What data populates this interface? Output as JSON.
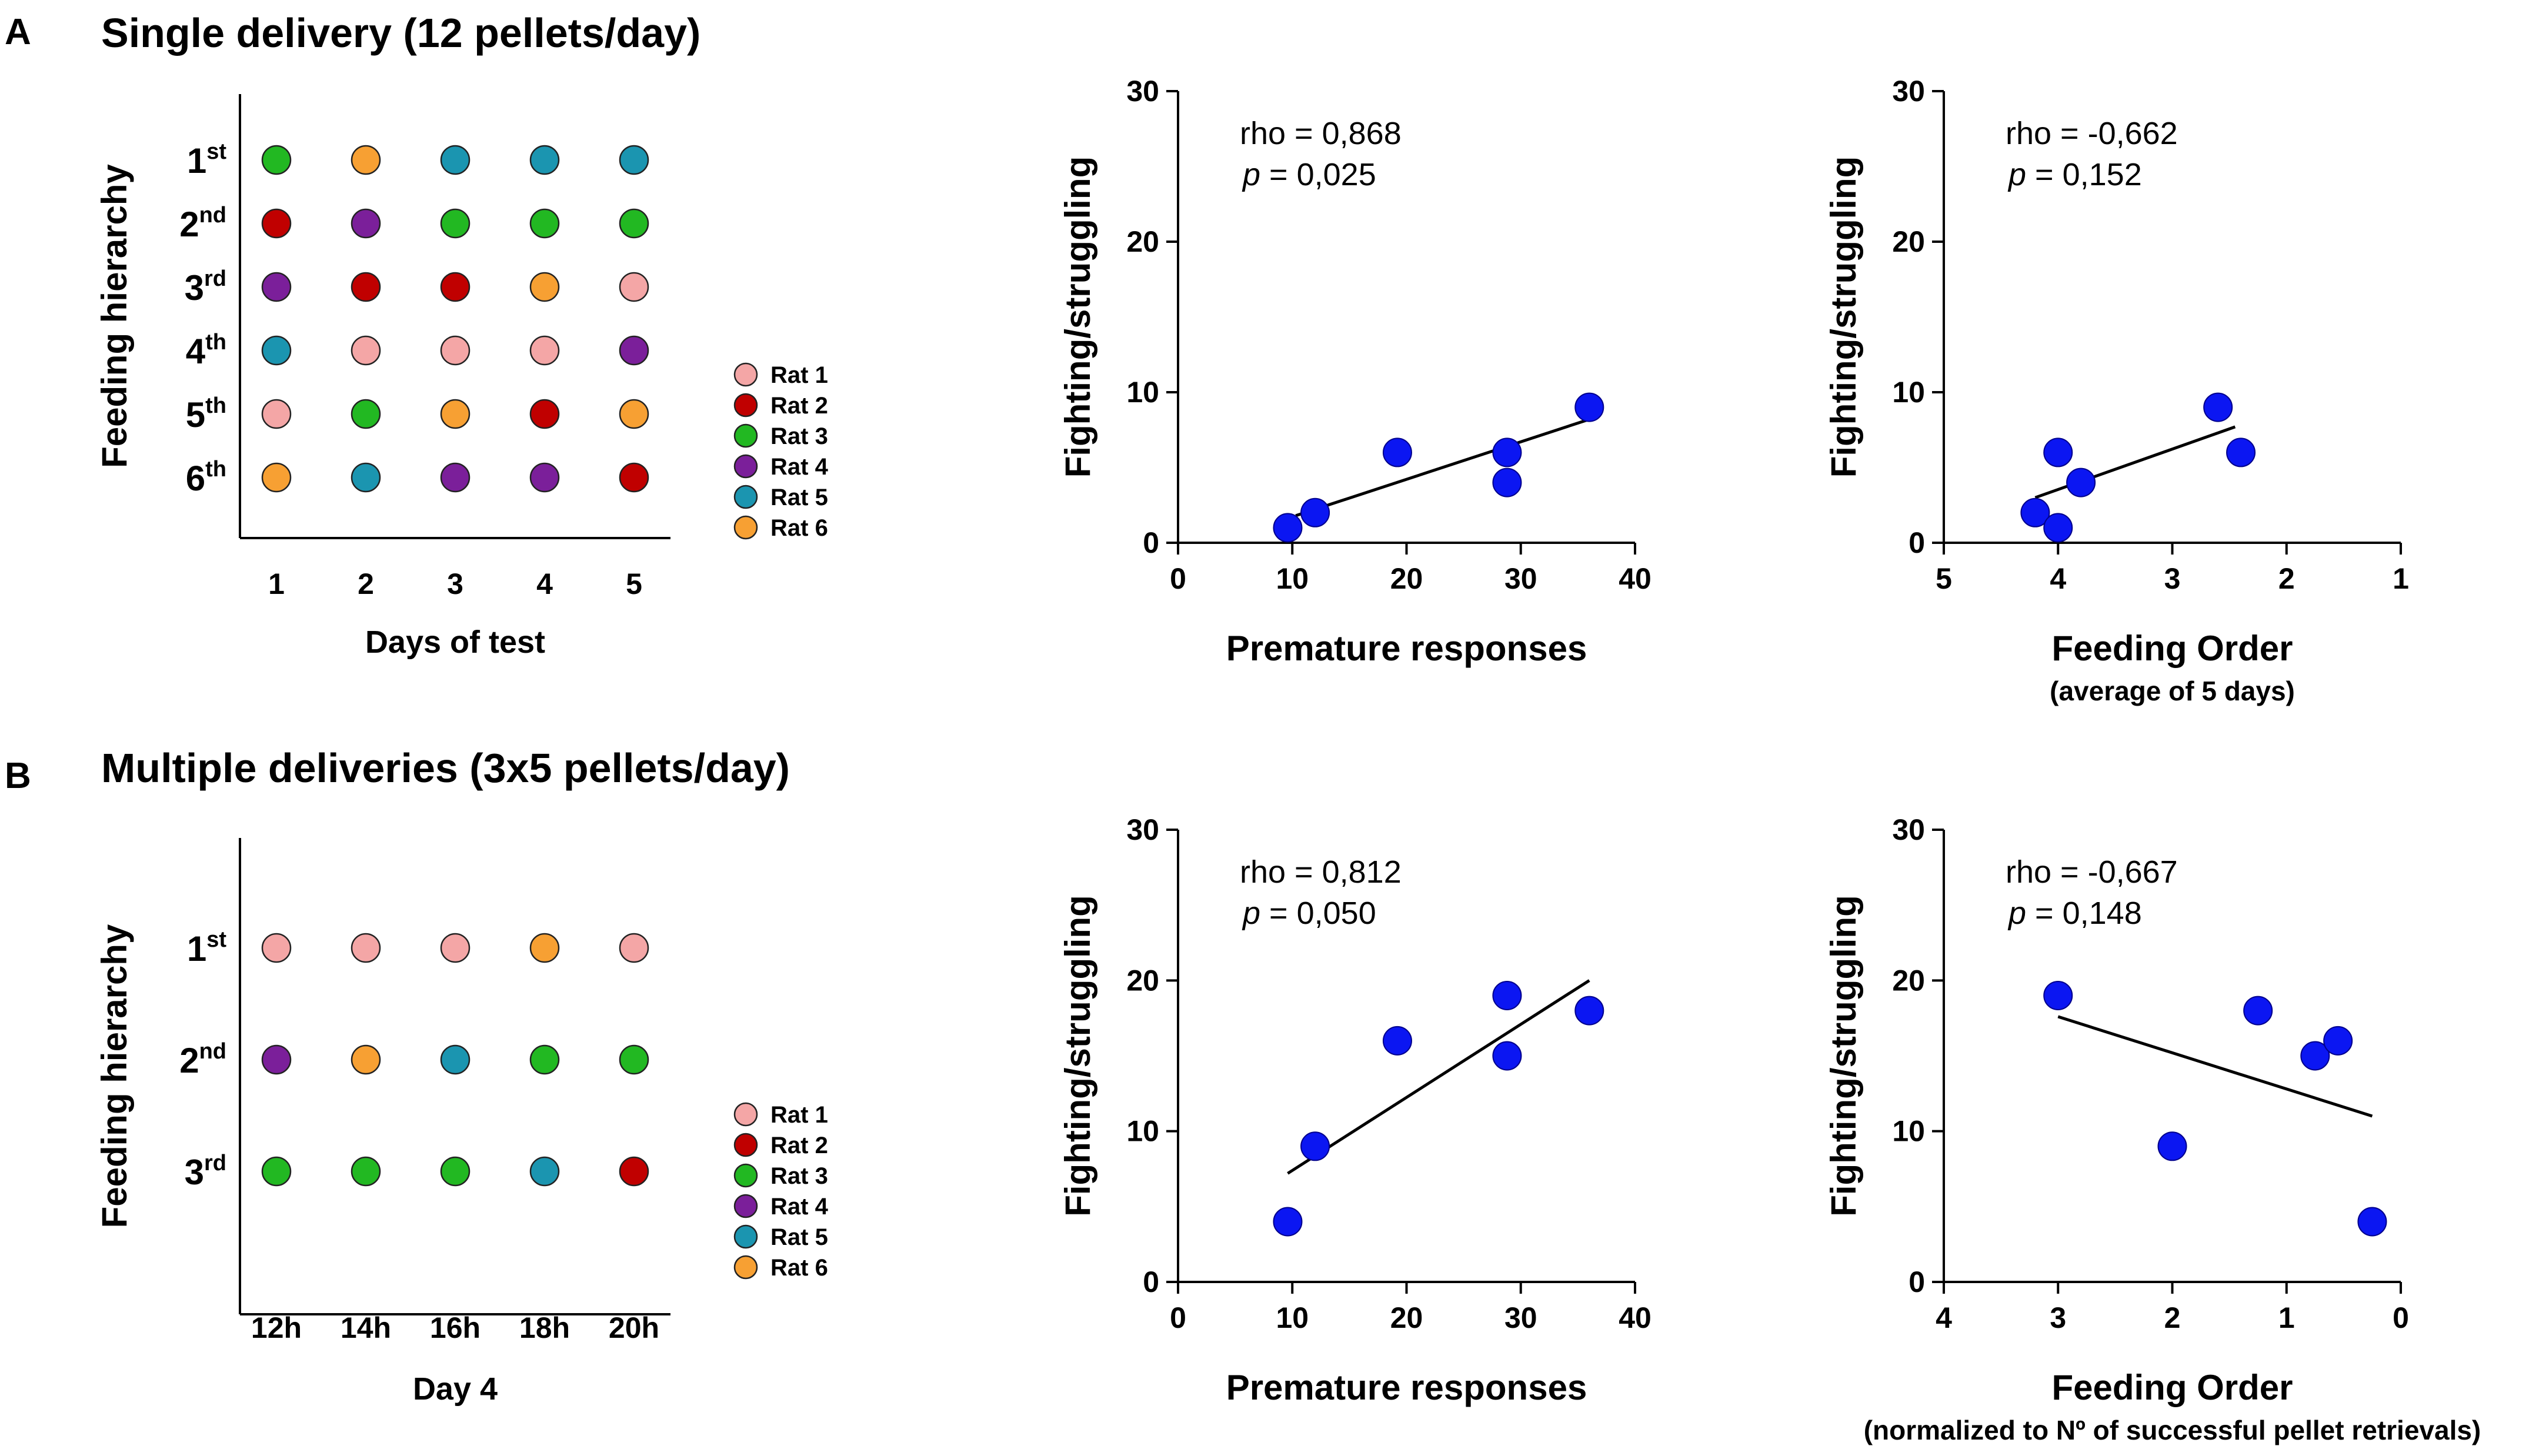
{
  "panels": {
    "A": {
      "letter": "A",
      "title": "Single delivery (12 pellets/day)"
    },
    "B": {
      "letter": "B",
      "title": "Multiple deliveries (3x5 pellets/day)"
    }
  },
  "rat_legend": {
    "entries": [
      {
        "label": "Rat 1",
        "color": "#f4a6a6"
      },
      {
        "label": "Rat 2",
        "color": "#c00000"
      },
      {
        "label": "Rat 3",
        "color": "#22b822"
      },
      {
        "label": "Rat 4",
        "color": "#7b1f9a"
      },
      {
        "label": "Rat 5",
        "color": "#1b95b0"
      },
      {
        "label": "Rat 6",
        "color": "#f7a033"
      }
    ]
  },
  "chart_data": [
    {
      "id": "A-hierarchy",
      "type": "dot-matrix",
      "ylabel": "Feeding hierarchy",
      "xlabel": "Days of test",
      "xlabel_sub": "",
      "categories": [
        "1",
        "2",
        "3",
        "4",
        "5"
      ],
      "ranks": [
        {
          "base": "1",
          "sup": "st"
        },
        {
          "base": "2",
          "sup": "nd"
        },
        {
          "base": "3",
          "sup": "rd"
        },
        {
          "base": "4",
          "sup": "th"
        },
        {
          "base": "5",
          "sup": "th"
        },
        {
          "base": "6",
          "sup": "th"
        }
      ],
      "matrix": [
        [
          3,
          6,
          5,
          5,
          5
        ],
        [
          2,
          4,
          3,
          3,
          3
        ],
        [
          4,
          2,
          2,
          6,
          1
        ],
        [
          5,
          1,
          1,
          1,
          4
        ],
        [
          1,
          3,
          6,
          2,
          6
        ],
        [
          6,
          5,
          4,
          4,
          2
        ]
      ]
    },
    {
      "id": "A-premature",
      "type": "scatter",
      "xlabel": "Premature responses",
      "xlabel_sub": "",
      "ylabel": "Fighting/struggling",
      "xlim": [
        0,
        40
      ],
      "ylim": [
        0,
        30
      ],
      "xticks": [
        "0",
        "10",
        "20",
        "30",
        "40"
      ],
      "yticks": [
        "0",
        "10",
        "20",
        "30"
      ],
      "x_reversed": false,
      "points": [
        {
          "x": 9.6,
          "y": 1
        },
        {
          "x": 12,
          "y": 2
        },
        {
          "x": 19.2,
          "y": 6
        },
        {
          "x": 28.8,
          "y": 6
        },
        {
          "x": 28.8,
          "y": 4
        },
        {
          "x": 36,
          "y": 9
        }
      ],
      "fit_line": {
        "x1": 10.3,
        "y1": 1.8,
        "x2": 36,
        "y2": 8.2
      },
      "annotation": {
        "rho": "rho = 0,868",
        "p_label": "p",
        "p_rest": " = 0,025"
      }
    },
    {
      "id": "A-feeding",
      "type": "scatter",
      "xlabel": "Feeding Order",
      "xlabel_sub": "(average of 5 days)",
      "ylabel": "Fighting/struggling",
      "xlim": [
        5,
        1
      ],
      "ylim": [
        0,
        30
      ],
      "xticks": [
        "5",
        "4",
        "3",
        "2",
        "1"
      ],
      "yticks": [
        "0",
        "10",
        "20",
        "30"
      ],
      "x_reversed": true,
      "points": [
        {
          "x": 4.2,
          "y": 2
        },
        {
          "x": 4.0,
          "y": 1
        },
        {
          "x": 4.0,
          "y": 6
        },
        {
          "x": 3.8,
          "y": 4
        },
        {
          "x": 2.6,
          "y": 9
        },
        {
          "x": 2.4,
          "y": 6
        }
      ],
      "fit_line": {
        "x1": 4.2,
        "y1": 3.0,
        "x2": 2.45,
        "y2": 7.7
      },
      "annotation": {
        "rho": "rho = -0,662",
        "p_label": "p",
        "p_rest": " = 0,152"
      }
    },
    {
      "id": "B-hierarchy",
      "type": "dot-matrix",
      "ylabel": "Feeding hierarchy",
      "xlabel": "Day 4",
      "xlabel_sub": "",
      "categories": [
        "12h",
        "14h",
        "16h",
        "18h",
        "20h"
      ],
      "ranks": [
        {
          "base": "1",
          "sup": "st"
        },
        {
          "base": "2",
          "sup": "nd"
        },
        {
          "base": "3",
          "sup": "rd"
        }
      ],
      "matrix": [
        [
          1,
          1,
          1,
          6,
          1
        ],
        [
          4,
          6,
          5,
          3,
          3
        ],
        [
          3,
          3,
          3,
          5,
          2
        ]
      ]
    },
    {
      "id": "B-premature",
      "type": "scatter",
      "xlabel": "Premature responses",
      "xlabel_sub": "",
      "ylabel": "Fighting/struggling",
      "xlim": [
        0,
        40
      ],
      "ylim": [
        0,
        30
      ],
      "xticks": [
        "0",
        "10",
        "20",
        "30",
        "40"
      ],
      "yticks": [
        "0",
        "10",
        "20",
        "30"
      ],
      "x_reversed": false,
      "points": [
        {
          "x": 9.6,
          "y": 4
        },
        {
          "x": 12,
          "y": 9
        },
        {
          "x": 19.2,
          "y": 16
        },
        {
          "x": 28.8,
          "y": 19
        },
        {
          "x": 28.8,
          "y": 15
        },
        {
          "x": 36,
          "y": 18
        }
      ],
      "fit_line": {
        "x1": 9.6,
        "y1": 7.2,
        "x2": 36,
        "y2": 20
      },
      "annotation": {
        "rho": "rho = 0,812",
        "p_label": "p",
        "p_rest": " = 0,050"
      }
    },
    {
      "id": "B-feeding",
      "type": "scatter",
      "xlabel": "Feeding Order",
      "xlabel_sub": "(normalized to Nº of successful pellet retrievals)",
      "ylabel": "Fighting/struggling",
      "xlim": [
        4,
        0
      ],
      "ylim": [
        0,
        30
      ],
      "xticks": [
        "4",
        "3",
        "2",
        "1",
        "0"
      ],
      "yticks": [
        "0",
        "10",
        "20",
        "30"
      ],
      "x_reversed": true,
      "points": [
        {
          "x": 3.0,
          "y": 19
        },
        {
          "x": 2.0,
          "y": 9
        },
        {
          "x": 1.25,
          "y": 18
        },
        {
          "x": 0.75,
          "y": 15
        },
        {
          "x": 0.55,
          "y": 16
        },
        {
          "x": 0.25,
          "y": 4
        }
      ],
      "fit_line": {
        "x1": 3.0,
        "y1": 17.6,
        "x2": 0.25,
        "y2": 11
      },
      "annotation": {
        "rho": "rho = -0,667",
        "p_label": "p",
        "p_rest": " = 0,148"
      }
    }
  ]
}
